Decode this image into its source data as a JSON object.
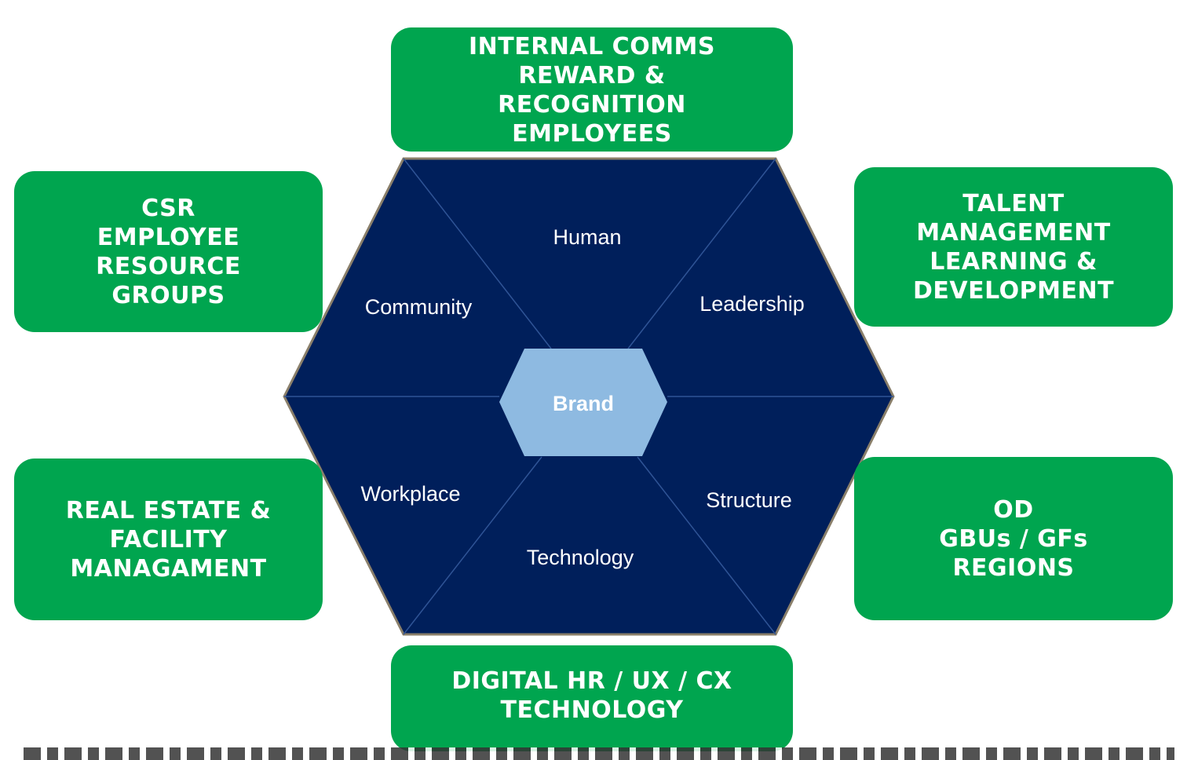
{
  "colors": {
    "box_green": "#00a54f",
    "hexagon_navy": "#001f5b",
    "center_light_blue": "#8ebae1",
    "divider_line": "#2f5496",
    "hexagon_border": "#8a7f6a"
  },
  "boxes": {
    "top": [
      "INTERNAL COMMS",
      "REWARD &",
      "RECOGNITION",
      "EMPLOYEES"
    ],
    "top_left": [
      "CSR",
      "EMPLOYEE",
      "RESOURCE",
      "GROUPS"
    ],
    "top_right": [
      "TALENT",
      "MANAGEMENT",
      "LEARNING &",
      "DEVELOPMENT"
    ],
    "bottom_left": [
      "REAL ESTATE &",
      "FACILITY",
      "MANAGAMENT"
    ],
    "bottom_right": [
      "OD",
      "GBUs / GFs",
      "REGIONS"
    ],
    "bottom": [
      "DIGITAL HR / UX / CX",
      "TECHNOLOGY"
    ]
  },
  "hexagon": {
    "segments": {
      "human": "Human",
      "leadership": "Leadership",
      "structure": "Structure",
      "technology": "Technology",
      "workplace": "Workplace",
      "community": "Community"
    },
    "center": "Brand"
  }
}
